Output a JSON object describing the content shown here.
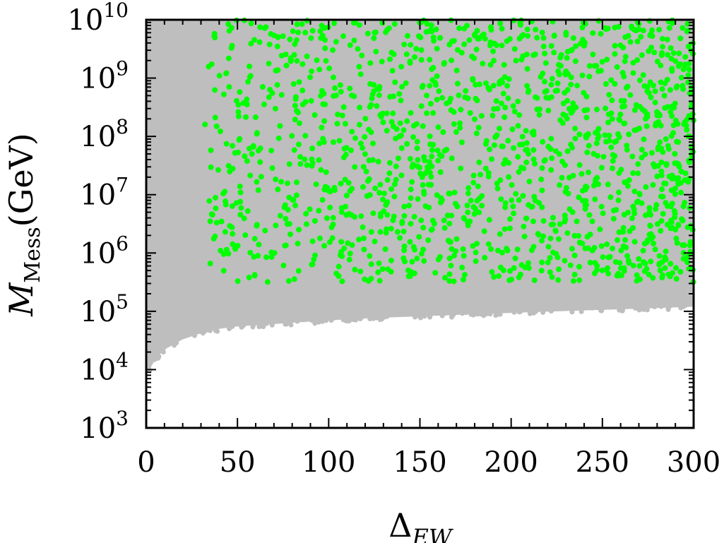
{
  "chart_data": {
    "type": "scatter",
    "xlabel": {
      "main": "Δ",
      "sub": "EW"
    },
    "ylabel": {
      "main": "M",
      "sub": "Mess",
      "unit": "(GeV)"
    },
    "xlim": [
      0,
      300
    ],
    "ylim_log10": [
      3,
      10
    ],
    "y_scale": "log",
    "grid": false,
    "x_ticks": [
      "0",
      "50",
      "100",
      "150",
      "200",
      "250",
      "300"
    ],
    "x_tick_values": [
      0,
      50,
      100,
      150,
      200,
      250,
      300
    ],
    "y_ticks": [
      {
        "base": "10",
        "exp": "3",
        "value": 1000
      },
      {
        "base": "10",
        "exp": "4",
        "value": 10000
      },
      {
        "base": "10",
        "exp": "5",
        "value": 100000
      },
      {
        "base": "10",
        "exp": "6",
        "value": 1000000
      },
      {
        "base": "10",
        "exp": "7",
        "value": 10000000
      },
      {
        "base": "10",
        "exp": "8",
        "value": 100000000
      },
      {
        "base": "10",
        "exp": "9",
        "value": 1000000000
      },
      {
        "base": "10",
        "exp": "10",
        "value": 10000000000
      }
    ],
    "series": [
      {
        "color": "#bebebe",
        "region": {
          "lower_boundary": [
            [
              0,
              8000
            ],
            [
              5,
              15000
            ],
            [
              10,
              22000
            ],
            [
              20,
              33000
            ],
            [
              30,
              42000
            ],
            [
              40,
              50000
            ],
            [
              50,
              55000
            ],
            [
              75,
              62000
            ],
            [
              100,
              70000
            ],
            [
              125,
              77000
            ],
            [
              150,
              82000
            ],
            [
              175,
              88000
            ],
            [
              200,
              94000
            ],
            [
              225,
              100000
            ],
            [
              250,
              106000
            ],
            [
              275,
              112000
            ],
            [
              300,
              120000
            ]
          ],
          "upper_boundary": 10000000000
        }
      },
      {
        "color": "#00ff00",
        "points_summary": {
          "x_range": [
            32,
            300
          ],
          "y_range": [
            300000,
            10000000000
          ],
          "count": 1500
        }
      }
    ]
  }
}
